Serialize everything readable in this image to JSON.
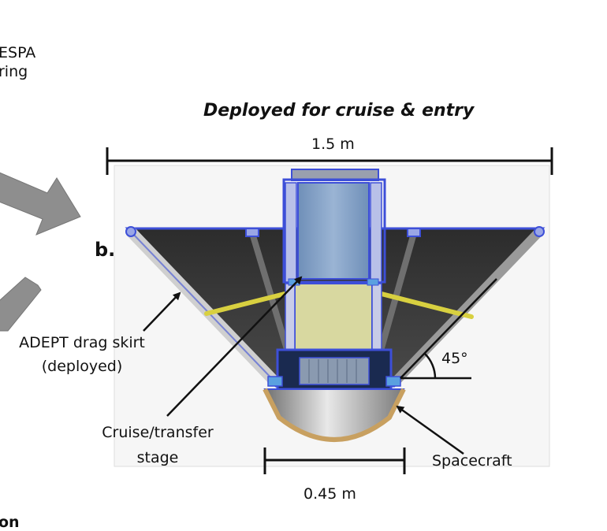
{
  "title": "Deployed for cruise & entry",
  "panel_label": "b.",
  "labels": {
    "espa_line1": "ESPA",
    "espa_line2": "ring",
    "outer_diameter": "1.5 m",
    "inner_diameter": "0.45 m",
    "angle": "45°",
    "drag_skirt_line1": "ADEPT drag skirt",
    "drag_skirt_line2": "(deployed)",
    "cruise_line1": "Cruise/transfer",
    "cruise_line2": "stage",
    "spacecraft": "Spacecraft",
    "partial_bottom": "on"
  },
  "colors": {
    "skirt_dark": "#3a3a3a",
    "frame_blue": "#3d4fd8",
    "stage_blue": "#7f9fc4",
    "stage_tan": "#d8d8a0",
    "heatshield": "#c8a060",
    "strut_yellow": "#d8d040",
    "arrow_gray": "#8e8e8e"
  }
}
